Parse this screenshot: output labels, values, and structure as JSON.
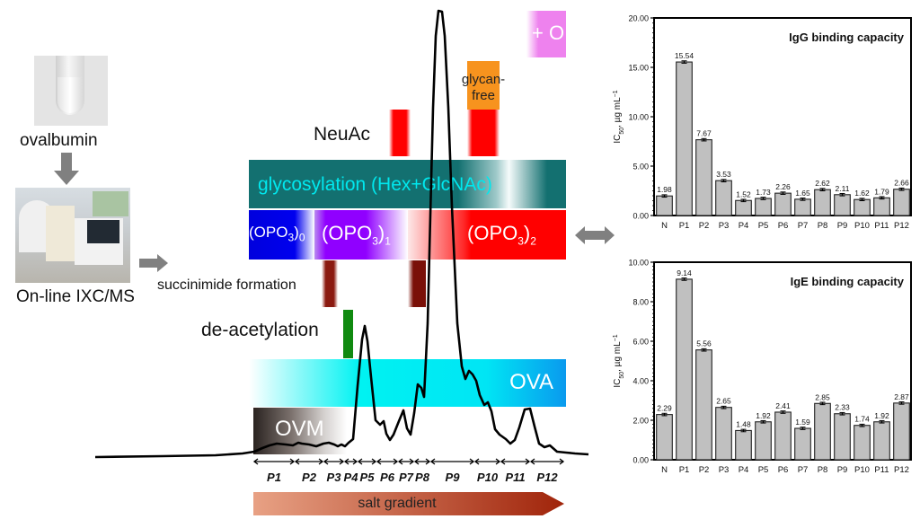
{
  "left_panel": {
    "sample_label": "ovalbumin",
    "instrument_label": "On-line IXC/MS",
    "sample_photo": "test-tube-photo",
    "instrument_photo": "lc-ms-instrument-photo"
  },
  "diagram": {
    "bands": {
      "glycosylation": "glycosylation (Hex+GlcNAc)",
      "phos0_main": "(OPO",
      "phos0_sub3": "3",
      "phos0_close": ")",
      "phos0_idx": "0",
      "phos1_main": "(OPO",
      "phos1_sub3": "3",
      "phos1_close": ")",
      "phos1_idx": "1",
      "phos2_main": "(OPO",
      "phos2_sub3": "3",
      "phos2_close": ")",
      "phos2_idx": "2",
      "ova": "OVA",
      "ovm": "OVM",
      "plus_o": "+ O",
      "glycan_free": "glycan-\nfree"
    },
    "labels": {
      "neuac": "NeuAc",
      "succinimide": "succinimide formation",
      "deacetylation": "de-acetylation",
      "salt_gradient": "salt gradient"
    },
    "fractions": [
      "P1",
      "P2",
      "P3",
      "P4",
      "P5",
      "P6",
      "P7",
      "P8",
      "P9",
      "P10",
      "P11",
      "P12"
    ],
    "colors": {
      "glycosylation": "#137070",
      "glyco_text": "#00e8ee",
      "phos0": "#0000ee",
      "phos1": "#9000ff",
      "phos2": "#ff0000",
      "ova": "#00e5f4",
      "neuac": "#ff0000",
      "glycan_free": "#f7931e",
      "plus_o": "#ee82ee",
      "succinimide": "#8b1a10",
      "deacetylation": "#108a10",
      "salt_start": "#e8a184",
      "salt_end": "#a0240a"
    }
  },
  "chart_data": [
    {
      "type": "bar",
      "title": "IgG binding capacity",
      "ylabel": "IC50, µg mL−1",
      "ylabel_main": "IC",
      "ylabel_sub": "50",
      "ylabel_rest": ", µg mL",
      "ylabel_sup": "−1",
      "categories": [
        "N",
        "P1",
        "P2",
        "P3",
        "P4",
        "P5",
        "P6",
        "P7",
        "P8",
        "P9",
        "P10",
        "P11",
        "P12"
      ],
      "values": [
        1.98,
        15.54,
        7.67,
        3.53,
        1.52,
        1.73,
        2.26,
        1.65,
        2.62,
        2.11,
        1.62,
        1.79,
        2.66
      ],
      "value_labels": [
        "1.98",
        "15.54",
        "7.67",
        "3.53",
        "1.52",
        "1.73",
        "2.26",
        "1.65",
        "2.62",
        "2.11",
        "1.62",
        "1.79",
        "2.66"
      ],
      "ylim": [
        0,
        20
      ],
      "yticks": [
        "0.00",
        "5.00",
        "10.00",
        "15.00",
        "20.00"
      ],
      "ytick_values": [
        0,
        5,
        10,
        15,
        20
      ],
      "error_bars": true,
      "bar_color": "#c0c0c0"
    },
    {
      "type": "bar",
      "title": "IgE binding capacity",
      "ylabel": "IC50, µg mL−1",
      "ylabel_main": "IC",
      "ylabel_sub": "50",
      "ylabel_rest": ", µg mL",
      "ylabel_sup": "−1",
      "categories": [
        "N",
        "P1",
        "P2",
        "P3",
        "P4",
        "P5",
        "P6",
        "P7",
        "P8",
        "P9",
        "P10",
        "P11",
        "P12"
      ],
      "values": [
        2.29,
        9.14,
        5.56,
        2.65,
        1.48,
        1.92,
        2.41,
        1.59,
        2.85,
        2.33,
        1.74,
        1.92,
        2.87
      ],
      "value_labels": [
        "2.29",
        "9.14",
        "5.56",
        "2.65",
        "1.48",
        "1.92",
        "2.41",
        "1.59",
        "2.85",
        "2.33",
        "1.74",
        "1.92",
        "2.87"
      ],
      "ylim": [
        0,
        10
      ],
      "yticks": [
        "0.00",
        "2.00",
        "4.00",
        "6.00",
        "8.00",
        "10.00"
      ],
      "ytick_values": [
        0,
        2,
        4,
        6,
        8,
        10
      ],
      "error_bars": true,
      "bar_color": "#c0c0c0"
    }
  ]
}
